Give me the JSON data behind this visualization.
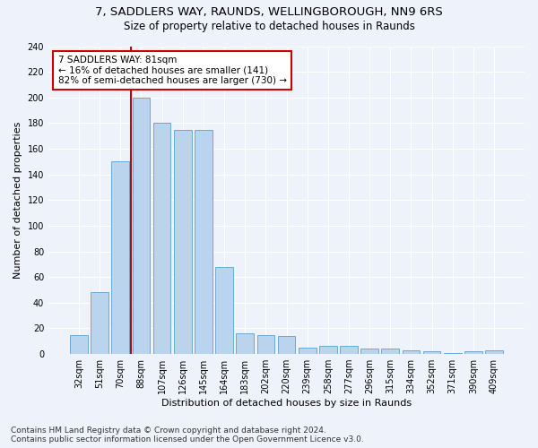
{
  "title1": "7, SADDLERS WAY, RAUNDS, WELLINGBOROUGH, NN9 6RS",
  "title2": "Size of property relative to detached houses in Raunds",
  "xlabel": "Distribution of detached houses by size in Raunds",
  "ylabel": "Number of detached properties",
  "categories": [
    "32sqm",
    "51sqm",
    "70sqm",
    "88sqm",
    "107sqm",
    "126sqm",
    "145sqm",
    "164sqm",
    "183sqm",
    "202sqm",
    "220sqm",
    "239sqm",
    "258sqm",
    "277sqm",
    "296sqm",
    "315sqm",
    "334sqm",
    "352sqm",
    "371sqm",
    "390sqm",
    "409sqm"
  ],
  "values": [
    15,
    48,
    150,
    200,
    180,
    175,
    175,
    68,
    16,
    15,
    14,
    5,
    6,
    6,
    4,
    4,
    3,
    2,
    1,
    2,
    3
  ],
  "bar_color": "#bad4ed",
  "bar_edge_color": "#6aaad4",
  "vline_color": "#cc0000",
  "annotation_text": "7 SADDLERS WAY: 81sqm\n← 16% of detached houses are smaller (141)\n82% of semi-detached houses are larger (730) →",
  "annotation_box_color": "#ffffff",
  "annotation_box_edge": "#cc0000",
  "ylim": [
    0,
    240
  ],
  "yticks": [
    0,
    20,
    40,
    60,
    80,
    100,
    120,
    140,
    160,
    180,
    200,
    220,
    240
  ],
  "footnote": "Contains HM Land Registry data © Crown copyright and database right 2024.\nContains public sector information licensed under the Open Government Licence v3.0.",
  "bg_color": "#eef2fa",
  "grid_color": "#ffffff",
  "title1_fontsize": 9.5,
  "title2_fontsize": 8.5,
  "xlabel_fontsize": 8,
  "ylabel_fontsize": 8,
  "tick_fontsize": 7,
  "annot_fontsize": 7.5,
  "footnote_fontsize": 6.5
}
